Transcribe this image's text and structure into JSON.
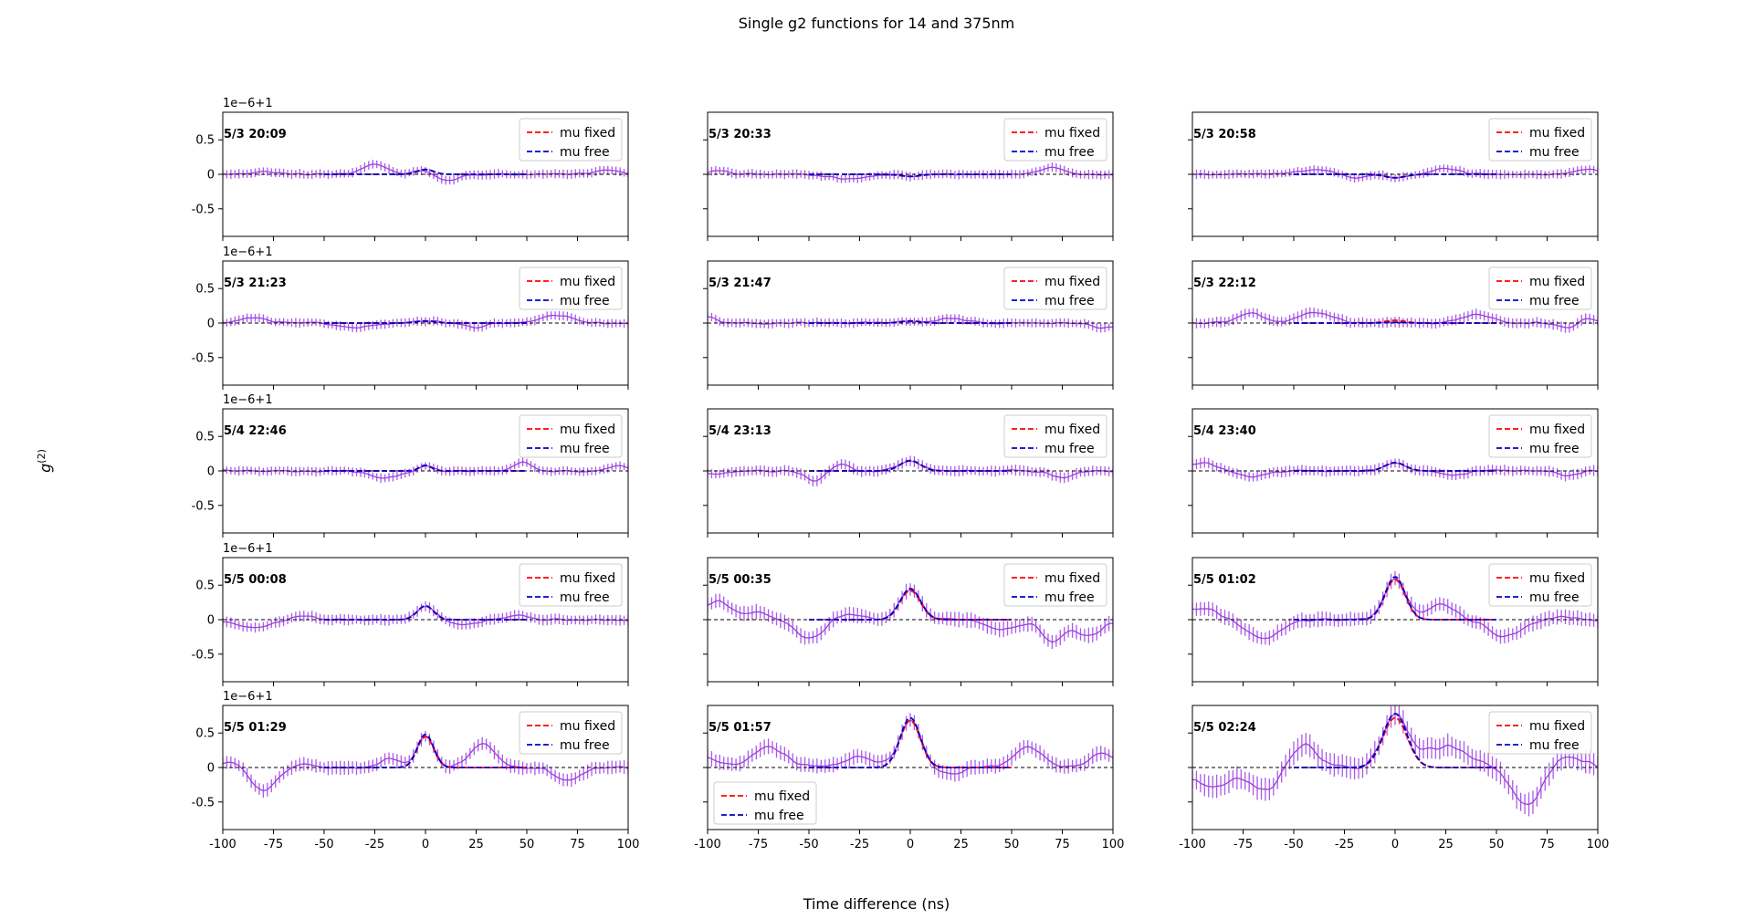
{
  "chart_data": {
    "type": "line",
    "title": "Single g2 functions for 14 and 375nm",
    "xlabel": "Time difference (ns)",
    "ylabel_base": "g",
    "ylabel_sup": "(2)",
    "xlim": [
      -100,
      100
    ],
    "ylim": [
      -0.9,
      0.9
    ],
    "xticks": [
      -100,
      -75,
      -50,
      -25,
      0,
      25,
      50,
      75,
      100
    ],
    "yticks": [
      0.5,
      0.0,
      -0.5
    ],
    "y_offset_label": "1e−6+1",
    "legend": [
      "mu fixed",
      "mu free"
    ],
    "colors": {
      "data": "#9b3fe0",
      "fixed": "#ff0000",
      "free": "#0000cc",
      "zero": "#000000"
    },
    "panels": [
      {
        "label": "5/3 20:09",
        "amp_fixed": 0.07,
        "amp_free": 0.07,
        "mu": 0,
        "sigma": 4,
        "err": 0.06,
        "bumps": [
          [
            -25,
            0.15,
            6
          ],
          [
            10,
            -0.1,
            5
          ],
          [
            90,
            0.07,
            6
          ],
          [
            -80,
            0.04,
            6
          ]
        ],
        "legend_loc": "upper-right"
      },
      {
        "label": "5/3 20:33",
        "amp_fixed": -0.03,
        "amp_free": -0.03,
        "mu": 0,
        "sigma": 5,
        "err": 0.06,
        "bumps": [
          [
            -30,
            -0.07,
            8
          ],
          [
            70,
            0.1,
            6
          ],
          [
            -95,
            0.05,
            5
          ]
        ],
        "legend_loc": "upper-right"
      },
      {
        "label": "5/3 20:58",
        "amp_fixed": -0.05,
        "amp_free": -0.05,
        "mu": 0,
        "sigma": 5,
        "err": 0.06,
        "bumps": [
          [
            -40,
            0.07,
            8
          ],
          [
            25,
            0.08,
            6
          ],
          [
            -20,
            -0.06,
            4
          ],
          [
            95,
            0.07,
            6
          ]
        ],
        "legend_loc": "upper-right"
      },
      {
        "label": "5/3 21:23",
        "amp_fixed": 0.03,
        "amp_free": 0.03,
        "mu": 0,
        "sigma": 5,
        "err": 0.06,
        "bumps": [
          [
            -85,
            0.08,
            6
          ],
          [
            -35,
            -0.06,
            8
          ],
          [
            65,
            0.12,
            7
          ],
          [
            25,
            -0.07,
            5
          ]
        ],
        "legend_loc": "upper-right"
      },
      {
        "label": "5/3 21:47",
        "amp_fixed": 0.03,
        "amp_free": 0.03,
        "mu": 0,
        "sigma": 5,
        "err": 0.06,
        "bumps": [
          [
            -100,
            0.1,
            4
          ],
          [
            20,
            0.07,
            6
          ],
          [
            95,
            -0.08,
            5
          ]
        ],
        "legend_loc": "upper-right"
      },
      {
        "label": "5/3 22:12",
        "amp_fixed": 0.04,
        "amp_free": 0.01,
        "mu": 0,
        "sigma": 5,
        "err": 0.07,
        "bumps": [
          [
            -72,
            0.16,
            6
          ],
          [
            -40,
            0.15,
            8
          ],
          [
            40,
            0.13,
            7
          ],
          [
            85,
            -0.07,
            5
          ],
          [
            95,
            0.08,
            4
          ]
        ],
        "legend_loc": "upper-right"
      },
      {
        "label": "5/4 22:46",
        "amp_fixed": 0.08,
        "amp_free": 0.08,
        "mu": 0,
        "sigma": 3,
        "err": 0.06,
        "bumps": [
          [
            -20,
            -0.1,
            7
          ],
          [
            48,
            0.13,
            4
          ],
          [
            95,
            0.07,
            5
          ]
        ],
        "legend_loc": "upper-right"
      },
      {
        "label": "5/4 23:13",
        "amp_fixed": 0.15,
        "amp_free": 0.15,
        "mu": 0,
        "sigma": 5,
        "err": 0.07,
        "bumps": [
          [
            -47,
            -0.15,
            4
          ],
          [
            -35,
            0.1,
            4
          ],
          [
            75,
            -0.1,
            5
          ],
          [
            -95,
            -0.05,
            5
          ]
        ],
        "legend_loc": "upper-right"
      },
      {
        "label": "5/4 23:40",
        "amp_fixed": 0.12,
        "amp_free": 0.12,
        "mu": 0,
        "sigma": 5,
        "err": 0.07,
        "bumps": [
          [
            -95,
            0.12,
            6
          ],
          [
            -70,
            -0.1,
            5
          ],
          [
            30,
            -0.06,
            5
          ],
          [
            85,
            -0.07,
            5
          ]
        ],
        "legend_loc": "upper-right"
      },
      {
        "label": "5/5 00:08",
        "amp_fixed": 0.2,
        "amp_free": 0.2,
        "mu": 0,
        "sigma": 4,
        "err": 0.07,
        "bumps": [
          [
            -85,
            -0.12,
            8
          ],
          [
            -60,
            0.07,
            5
          ],
          [
            45,
            0.07,
            5
          ],
          [
            20,
            -0.08,
            5
          ]
        ],
        "legend_loc": "upper-right"
      },
      {
        "label": "5/5 00:35",
        "amp_fixed": 0.42,
        "amp_free": 0.45,
        "mu": 0,
        "sigma": 5,
        "err": 0.1,
        "bumps": [
          [
            -95,
            0.28,
            6
          ],
          [
            -50,
            -0.3,
            6
          ],
          [
            -75,
            0.1,
            6
          ],
          [
            -30,
            0.08,
            6
          ],
          [
            70,
            -0.35,
            5
          ],
          [
            88,
            -0.25,
            6
          ],
          [
            45,
            -0.15,
            7
          ]
        ],
        "legend_loc": "upper-right"
      },
      {
        "label": "5/5 01:02",
        "amp_fixed": 0.58,
        "amp_free": 0.62,
        "mu": 0,
        "sigma": 5,
        "err": 0.1,
        "bumps": [
          [
            -95,
            0.18,
            7
          ],
          [
            -65,
            -0.28,
            8
          ],
          [
            22,
            0.22,
            7
          ],
          [
            55,
            -0.25,
            8
          ],
          [
            85,
            0.05,
            6
          ]
        ],
        "legend_loc": "upper-right"
      },
      {
        "label": "5/5 01:29",
        "amp_fixed": 0.45,
        "amp_free": 0.48,
        "mu": 0,
        "sigma": 4,
        "err": 0.09,
        "bumps": [
          [
            -80,
            -0.35,
            6
          ],
          [
            -60,
            0.05,
            6
          ],
          [
            28,
            0.35,
            6
          ],
          [
            -18,
            0.12,
            5
          ],
          [
            70,
            -0.2,
            6
          ],
          [
            -95,
            0.1,
            5
          ]
        ],
        "legend_loc": "upper-right"
      },
      {
        "label": "5/5 01:57",
        "amp_fixed": 0.68,
        "amp_free": 0.72,
        "mu": 0,
        "sigma": 5,
        "err": 0.1,
        "bumps": [
          [
            -70,
            0.3,
            8
          ],
          [
            -100,
            0.15,
            5
          ],
          [
            -25,
            0.15,
            8
          ],
          [
            58,
            0.3,
            7
          ],
          [
            95,
            0.22,
            6
          ],
          [
            20,
            -0.08,
            6
          ]
        ],
        "legend_loc": "lower-left"
      },
      {
        "label": "5/5 02:24",
        "amp_fixed": 0.72,
        "amp_free": 0.78,
        "mu": 0,
        "sigma": 6,
        "err": 0.15,
        "bumps": [
          [
            -90,
            -0.3,
            8
          ],
          [
            -65,
            -0.35,
            7
          ],
          [
            -45,
            0.35,
            6
          ],
          [
            25,
            0.3,
            12
          ],
          [
            65,
            -0.55,
            7
          ],
          [
            85,
            0.15,
            8
          ]
        ],
        "legend_loc": "upper-right"
      }
    ]
  }
}
